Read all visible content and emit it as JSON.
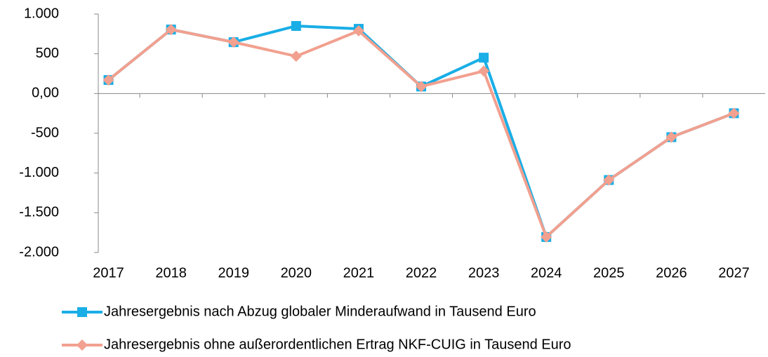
{
  "chart_data": {
    "type": "line",
    "categories": [
      "2017",
      "2018",
      "2019",
      "2020",
      "2021",
      "2022",
      "2023",
      "2024",
      "2025",
      "2026",
      "2027"
    ],
    "series": [
      {
        "name": "Jahresergebnis nach Abzug globaler Minderaufwand in Tausend Euro",
        "color": "#19aee6",
        "marker": "square",
        "values": [
          170,
          805,
          646,
          850,
          814,
          88,
          451,
          -1805,
          -1088,
          -549,
          -248
        ]
      },
      {
        "name": "Jahresergebnis ohne außerordentlichen Ertrag NKF-CUIG in Tausend Euro",
        "color": "#f2a08f",
        "marker": "diamond",
        "values": [
          170,
          805,
          646,
          469,
          788,
          88,
          283,
          -1805,
          -1088,
          -549,
          -248
        ]
      }
    ],
    "ylim": [
      -2000,
      1000
    ],
    "yticks": [
      {
        "value": -2000,
        "label": "-2.000"
      },
      {
        "value": -1500,
        "label": "-1.500"
      },
      {
        "value": -1000,
        "label": "-1.000"
      },
      -500,
      {
        "value": 0,
        "label": "0,00"
      },
      500,
      {
        "value": 1000,
        "label": "1.000"
      }
    ],
    "grid": false,
    "legend": "bottom"
  }
}
